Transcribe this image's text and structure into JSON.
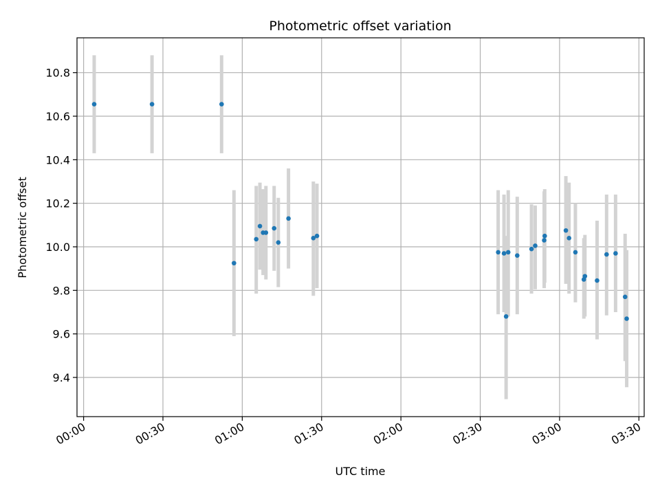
{
  "chart_data": {
    "type": "scatter",
    "title": "Photometric offset variation",
    "xlabel": "UTC time",
    "ylabel": "Photometric offset",
    "x_axis": "time",
    "xlim_minutes": [
      -2.5,
      212
    ],
    "ylim": [
      9.22,
      10.96
    ],
    "x_ticks": [
      {
        "value": 0,
        "label": "00:00"
      },
      {
        "value": 30,
        "label": "00:30"
      },
      {
        "value": 60,
        "label": "01:00"
      },
      {
        "value": 90,
        "label": "01:30"
      },
      {
        "value": 120,
        "label": "02:00"
      },
      {
        "value": 150,
        "label": "02:30"
      },
      {
        "value": 180,
        "label": "03:00"
      },
      {
        "value": 210,
        "label": "03:30"
      }
    ],
    "y_ticks": [
      {
        "value": 9.4,
        "label": "9.4"
      },
      {
        "value": 9.6,
        "label": "9.6"
      },
      {
        "value": 9.8,
        "label": "9.8"
      },
      {
        "value": 10.0,
        "label": "10.0"
      },
      {
        "value": 10.2,
        "label": "10.2"
      },
      {
        "value": 10.4,
        "label": "10.4"
      },
      {
        "value": 10.6,
        "label": "10.6"
      },
      {
        "value": 10.8,
        "label": "10.8"
      }
    ],
    "grid": true,
    "point_color": "#1f77b4",
    "errorbar_color": "#d3d3d3",
    "points": [
      {
        "t": "00:04:00",
        "y": 10.655,
        "lo": 10.43,
        "hi": 10.88
      },
      {
        "t": "00:25:52",
        "y": 10.655,
        "lo": 10.43,
        "hi": 10.88
      },
      {
        "t": "00:52:11",
        "y": 10.655,
        "lo": 10.43,
        "hi": 10.88
      },
      {
        "t": "00:56:52",
        "y": 9.925,
        "lo": 9.59,
        "hi": 10.26
      },
      {
        "t": "01:05:17",
        "y": 10.035,
        "lo": 9.785,
        "hi": 10.28
      },
      {
        "t": "01:06:41",
        "y": 10.095,
        "lo": 9.895,
        "hi": 10.295
      },
      {
        "t": "01:07:52",
        "y": 10.065,
        "lo": 9.87,
        "hi": 10.265
      },
      {
        "t": "01:08:57",
        "y": 10.065,
        "lo": 9.85,
        "hi": 10.28
      },
      {
        "t": "01:12:03",
        "y": 10.085,
        "lo": 9.89,
        "hi": 10.28
      },
      {
        "t": "01:13:38",
        "y": 10.02,
        "lo": 9.815,
        "hi": 10.225
      },
      {
        "t": "01:17:29",
        "y": 10.13,
        "lo": 9.9,
        "hi": 10.36
      },
      {
        "t": "01:26:53",
        "y": 10.04,
        "lo": 9.775,
        "hi": 10.3
      },
      {
        "t": "01:28:15",
        "y": 10.05,
        "lo": 9.81,
        "hi": 10.29
      },
      {
        "t": "02:36:47",
        "y": 9.975,
        "lo": 9.69,
        "hi": 10.26
      },
      {
        "t": "02:38:59",
        "y": 9.97,
        "lo": 9.7,
        "hi": 10.24
      },
      {
        "t": "02:39:47",
        "y": 9.68,
        "lo": 9.3,
        "hi": 10.05
      },
      {
        "t": "02:40:35",
        "y": 9.975,
        "lo": 9.68,
        "hi": 10.26
      },
      {
        "t": "02:43:59",
        "y": 9.96,
        "lo": 9.69,
        "hi": 10.23
      },
      {
        "t": "02:49:23",
        "y": 9.99,
        "lo": 9.785,
        "hi": 10.195
      },
      {
        "t": "02:50:47",
        "y": 10.005,
        "lo": 9.805,
        "hi": 10.19
      },
      {
        "t": "02:54:11",
        "y": 10.03,
        "lo": 9.81,
        "hi": 10.255
      },
      {
        "t": "02:54:23",
        "y": 10.05,
        "lo": 9.835,
        "hi": 10.265
      },
      {
        "t": "03:02:23",
        "y": 10.075,
        "lo": 9.83,
        "hi": 10.325
      },
      {
        "t": "03:03:35",
        "y": 10.04,
        "lo": 9.785,
        "hi": 10.295
      },
      {
        "t": "03:05:59",
        "y": 9.975,
        "lo": 9.745,
        "hi": 10.2
      },
      {
        "t": "03:09:11",
        "y": 9.85,
        "lo": 9.67,
        "hi": 10.04
      },
      {
        "t": "03:09:35",
        "y": 9.865,
        "lo": 9.68,
        "hi": 10.055
      },
      {
        "t": "03:14:11",
        "y": 9.845,
        "lo": 9.575,
        "hi": 10.12
      },
      {
        "t": "03:17:47",
        "y": 9.965,
        "lo": 9.685,
        "hi": 10.24
      },
      {
        "t": "03:21:11",
        "y": 9.97,
        "lo": 9.7,
        "hi": 10.24
      },
      {
        "t": "03:24:47",
        "y": 9.77,
        "lo": 9.475,
        "hi": 10.06
      },
      {
        "t": "03:25:23",
        "y": 9.67,
        "lo": 9.355,
        "hi": 9.985
      }
    ]
  }
}
